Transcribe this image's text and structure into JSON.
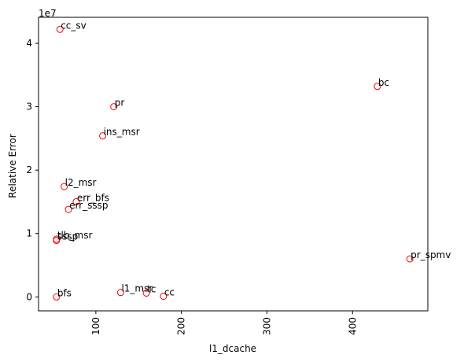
{
  "chart_data": {
    "type": "scatter",
    "title": "",
    "xlabel": "l1_dcache",
    "ylabel": "Relative Error",
    "y_offset_label": "1e7",
    "xlim": [
      33,
      488
    ],
    "ylim": [
      -2200000,
      44100000
    ],
    "x_ticks": [
      100,
      200,
      300,
      400
    ],
    "x_tick_labels": [
      "100",
      "200",
      "300",
      "400"
    ],
    "y_ticks": [
      0,
      10000000,
      20000000,
      30000000,
      40000000
    ],
    "y_tick_labels": [
      "0",
      "1",
      "2",
      "3",
      "4"
    ],
    "grid": false,
    "marker": "open-circle",
    "marker_color": "#ff0000",
    "points": [
      {
        "label": "cc_sv",
        "x": 58,
        "y": 42200000
      },
      {
        "label": "bc",
        "x": 429,
        "y": 33200000
      },
      {
        "label": "pr",
        "x": 121,
        "y": 30000000
      },
      {
        "label": "ins_msr",
        "x": 108,
        "y": 25400000
      },
      {
        "label": "l2_msr",
        "x": 63,
        "y": 17400000
      },
      {
        "label": "err_bfs",
        "x": 77,
        "y": 15000000
      },
      {
        "label": "err_sssp",
        "x": 68,
        "y": 13800000
      },
      {
        "label": "tlb_msr",
        "x": 54,
        "y": 9100000
      },
      {
        "label": "sssp",
        "x": 54,
        "y": 8900000
      },
      {
        "label": "pr_spmv",
        "x": 467,
        "y": 6000000
      },
      {
        "label": "l1_msr",
        "x": 129,
        "y": 700000
      },
      {
        "label": "tc",
        "x": 159,
        "y": 600000
      },
      {
        "label": "cc",
        "x": 179,
        "y": 100000
      },
      {
        "label": "bfs",
        "x": 54,
        "y": 0
      }
    ]
  }
}
